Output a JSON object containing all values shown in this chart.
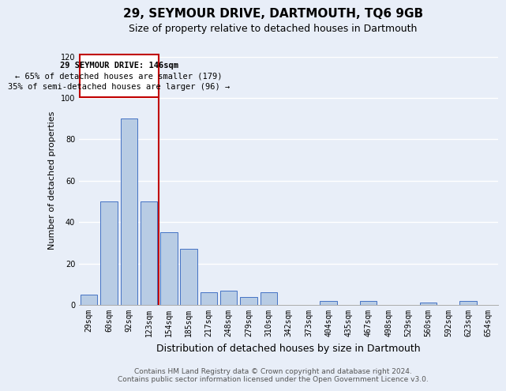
{
  "title": "29, SEYMOUR DRIVE, DARTMOUTH, TQ6 9GB",
  "subtitle": "Size of property relative to detached houses in Dartmouth",
  "xlabel": "Distribution of detached houses by size in Dartmouth",
  "ylabel": "Number of detached properties",
  "categories": [
    "29sqm",
    "60sqm",
    "92sqm",
    "123sqm",
    "154sqm",
    "185sqm",
    "217sqm",
    "248sqm",
    "279sqm",
    "310sqm",
    "342sqm",
    "373sqm",
    "404sqm",
    "435sqm",
    "467sqm",
    "498sqm",
    "529sqm",
    "560sqm",
    "592sqm",
    "623sqm",
    "654sqm"
  ],
  "values": [
    5,
    50,
    90,
    50,
    35,
    27,
    6,
    7,
    4,
    6,
    0,
    0,
    2,
    0,
    2,
    0,
    0,
    1,
    0,
    2,
    0
  ],
  "bar_color": "#b8cce4",
  "bar_edge_color": "#4472c4",
  "highlight_line_color": "#c00000",
  "box_text_line1": "29 SEYMOUR DRIVE: 146sqm",
  "box_text_line2": "← 65% of detached houses are smaller (179)",
  "box_text_line3": "35% of semi-detached houses are larger (96) →",
  "box_color": "#c00000",
  "ylim": [
    0,
    120
  ],
  "yticks": [
    0,
    20,
    40,
    60,
    80,
    100,
    120
  ],
  "footer_line1": "Contains HM Land Registry data © Crown copyright and database right 2024.",
  "footer_line2": "Contains public sector information licensed under the Open Government Licence v3.0.",
  "background_color": "#e8eef8",
  "plot_bg_color": "#e8eef8",
  "grid_color": "#ffffff",
  "title_fontsize": 11,
  "subtitle_fontsize": 9,
  "xlabel_fontsize": 9,
  "ylabel_fontsize": 8,
  "footer_fontsize": 6.5,
  "tick_fontsize": 7
}
